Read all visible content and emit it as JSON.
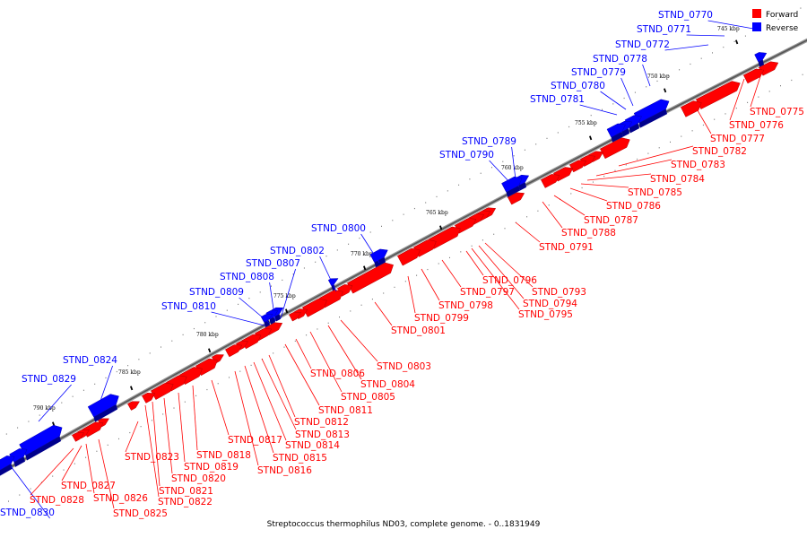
{
  "caption": "Streptococcus thermophilus ND03, complete genome. - 0..1831949",
  "legend": [
    {
      "label": "Forward",
      "color": "#ff0000"
    },
    {
      "label": "Reverse",
      "color": "#0000ff"
    }
  ],
  "colors": {
    "forward": "#ff0000",
    "reverse": "#0000ff",
    "backbone": "#555555"
  },
  "kbp_ticks": [
    "745 kbp",
    "750 kbp",
    "755 kbp",
    "760 kbp",
    "765 kbp",
    "770 kbp",
    "775 kbp",
    "780 kbp",
    "785 kbp",
    "790 kbp"
  ],
  "reverse_genes": [
    "STND_0770",
    "STND_0771",
    "STND_0772",
    "STND_0778",
    "STND_0779",
    "STND_0780",
    "STND_0781",
    "STND_0789",
    "STND_0790",
    "STND_0800",
    "STND_0802",
    "STND_0807",
    "STND_0808",
    "STND_0809",
    "STND_0810",
    "STND_0824",
    "STND_0829",
    "STND_0830"
  ],
  "forward_genes": [
    "STND_0775",
    "STND_0776",
    "STND_0777",
    "STND_0782",
    "STND_0783",
    "STND_0784",
    "STND_0785",
    "STND_0786",
    "STND_0787",
    "STND_0788",
    "STND_0791",
    "STND_0793",
    "STND_0794",
    "STND_0795",
    "STND_0796",
    "STND_0797",
    "STND_0798",
    "STND_0799",
    "STND_0801",
    "STND_0803",
    "STND_0804",
    "STND_0805",
    "STND_0806",
    "STND_0811",
    "STND_0812",
    "STND_0813",
    "STND_0814",
    "STND_0815",
    "STND_0816",
    "STND_0817",
    "STND_0818",
    "STND_0819",
    "STND_0820",
    "STND_0821",
    "STND_0822",
    "STND_0823",
    "STND_0825",
    "STND_0826",
    "STND_0827",
    "STND_0828"
  ]
}
